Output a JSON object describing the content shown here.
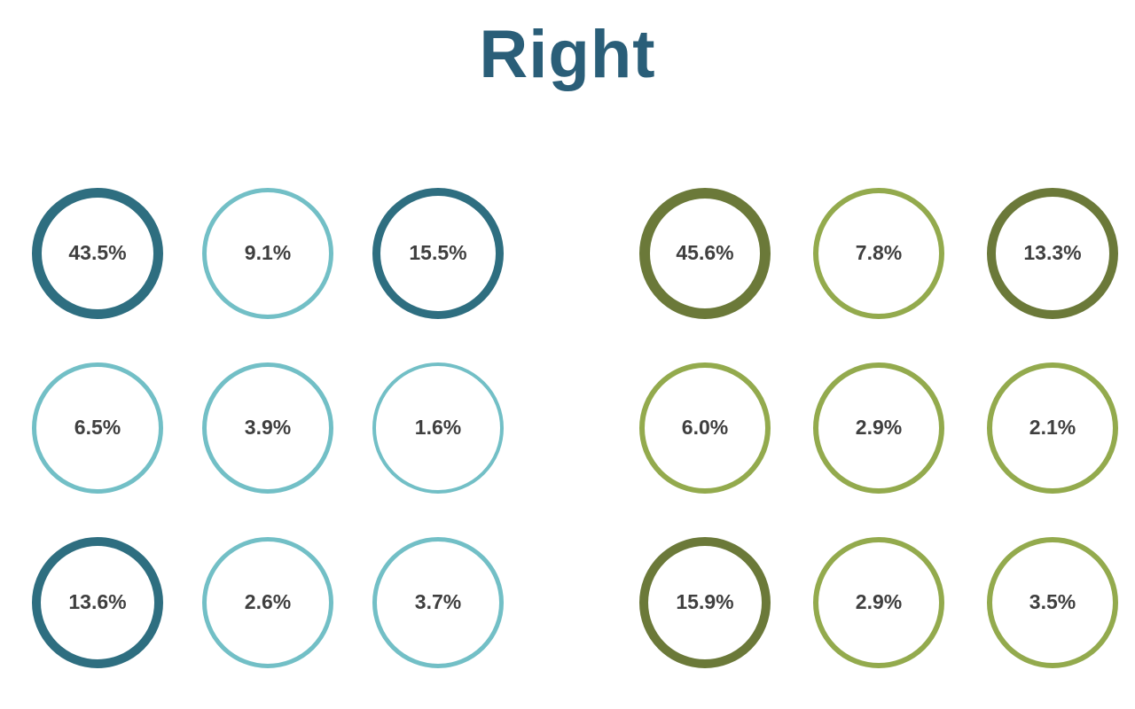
{
  "page": {
    "title": "Right",
    "title_color": "#2a5e78",
    "background": "#ffffff"
  },
  "palette": {
    "teal_dark": "#2e6e80",
    "teal_light": "#72bfc6",
    "olive_dark": "#6b7939",
    "olive_light": "#93aa4d",
    "label_text": "#3f3f3f"
  },
  "grids": [
    {
      "name": "left-teal-grid",
      "color_scheme": "teal",
      "columns": 3,
      "cells": [
        {
          "label": "43.5%",
          "value": 43.5,
          "tone": "dark",
          "stroke": 11
        },
        {
          "label": "9.1%",
          "value": 9.1,
          "tone": "light",
          "stroke": 5
        },
        {
          "label": "15.5%",
          "value": 15.5,
          "tone": "dark",
          "stroke": 9
        },
        {
          "label": "6.5%",
          "value": 6.5,
          "tone": "light",
          "stroke": 5
        },
        {
          "label": "3.9%",
          "value": 3.9,
          "tone": "light",
          "stroke": 5
        },
        {
          "label": "1.6%",
          "value": 1.6,
          "tone": "light",
          "stroke": 4
        },
        {
          "label": "13.6%",
          "value": 13.6,
          "tone": "dark",
          "stroke": 10
        },
        {
          "label": "2.6%",
          "value": 2.6,
          "tone": "light",
          "stroke": 5
        },
        {
          "label": "3.7%",
          "value": 3.7,
          "tone": "light",
          "stroke": 5
        }
      ]
    },
    {
      "name": "right-olive-grid",
      "color_scheme": "olive",
      "columns": 3,
      "cells": [
        {
          "label": "45.6%",
          "value": 45.6,
          "tone": "dark",
          "stroke": 12
        },
        {
          "label": "7.8%",
          "value": 7.8,
          "tone": "light",
          "stroke": 6
        },
        {
          "label": "13.3%",
          "value": 13.3,
          "tone": "dark",
          "stroke": 10
        },
        {
          "label": "6.0%",
          "value": 6.0,
          "tone": "light",
          "stroke": 6
        },
        {
          "label": "2.9%",
          "value": 2.9,
          "tone": "light",
          "stroke": 6
        },
        {
          "label": "2.1%",
          "value": 2.1,
          "tone": "light",
          "stroke": 6
        },
        {
          "label": "15.9%",
          "value": 15.9,
          "tone": "dark",
          "stroke": 10
        },
        {
          "label": "2.9%",
          "value": 2.9,
          "tone": "light",
          "stroke": 6
        },
        {
          "label": "3.5%",
          "value": 3.5,
          "tone": "light",
          "stroke": 6
        }
      ]
    }
  ],
  "chart_data": [
    {
      "type": "table",
      "title": "Right",
      "name": "left-teal-grid",
      "unit": "%",
      "rows": [
        [
          43.5,
          9.1,
          15.5
        ],
        [
          6.5,
          3.9,
          1.6
        ],
        [
          13.6,
          2.6,
          3.7
        ]
      ],
      "emphasized_cells": [
        [
          0,
          0
        ],
        [
          0,
          2
        ],
        [
          2,
          0
        ]
      ],
      "emphasis_rule": "values >= 10% drawn with dark thick ring; others light thin ring"
    },
    {
      "type": "table",
      "title": "Right",
      "name": "right-olive-grid",
      "unit": "%",
      "rows": [
        [
          45.6,
          7.8,
          13.3
        ],
        [
          6.0,
          2.9,
          2.1
        ],
        [
          15.9,
          2.9,
          3.5
        ]
      ],
      "emphasized_cells": [
        [
          0,
          0
        ],
        [
          0,
          2
        ],
        [
          2,
          0
        ]
      ],
      "emphasis_rule": "values >= 10% drawn with dark thick ring; others light thin ring"
    }
  ]
}
